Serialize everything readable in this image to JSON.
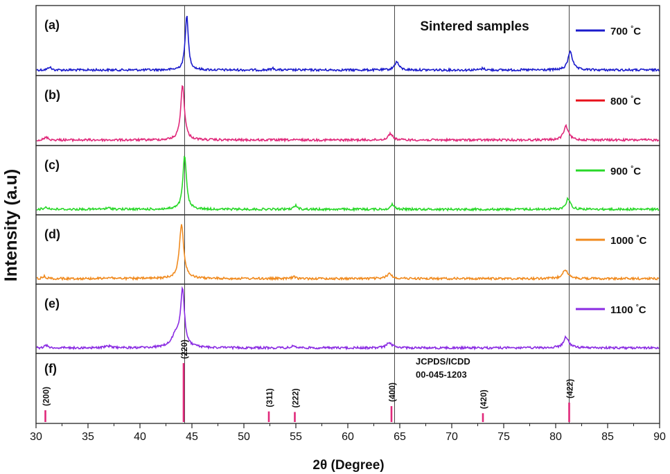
{
  "chart_data": {
    "type": "line",
    "title": "Sintered samples",
    "xlabel": "2θ (Degree)",
    "ylabel": "Intensity (a.u)",
    "xlim": [
      30,
      90
    ],
    "x_ticks": [
      30,
      35,
      40,
      45,
      50,
      55,
      60,
      65,
      70,
      75,
      80,
      85,
      90
    ],
    "reference_lines_x": [
      44.3,
      64.5,
      81.3
    ],
    "panels": [
      {
        "id": "a",
        "label": "(a)",
        "legend": "700 °C",
        "legend_temp": "700",
        "legend_unit": "°C",
        "color": "#1a1acc",
        "peaks": [
          {
            "x": 31.3,
            "height": 0.06,
            "width": 0.15
          },
          {
            "x": 44.5,
            "height": 1.0,
            "width": 0.18
          },
          {
            "x": 52.8,
            "height": 0.03,
            "width": 0.2
          },
          {
            "x": 64.7,
            "height": 0.15,
            "width": 0.25
          },
          {
            "x": 73.0,
            "height": 0.03,
            "width": 0.2
          },
          {
            "x": 81.4,
            "height": 0.35,
            "width": 0.25
          }
        ]
      },
      {
        "id": "b",
        "label": "(b)",
        "legend": "800 °C",
        "legend_temp": "800",
        "legend_unit": "°C",
        "color": "#e0287a",
        "legend_line_color": "#e8101a",
        "peaks": [
          {
            "x": 31.0,
            "height": 0.05,
            "width": 0.2
          },
          {
            "x": 44.1,
            "height": 1.0,
            "width": 0.22
          },
          {
            "x": 64.1,
            "height": 0.12,
            "width": 0.25
          },
          {
            "x": 81.0,
            "height": 0.25,
            "width": 0.28
          }
        ]
      },
      {
        "id": "c",
        "label": "(c)",
        "legend": "900 °C",
        "legend_temp": "900",
        "legend_unit": "°C",
        "color": "#28d828",
        "peaks": [
          {
            "x": 31.0,
            "height": 0.04,
            "width": 0.2
          },
          {
            "x": 37.0,
            "height": 0.02,
            "width": 0.4
          },
          {
            "x": 44.3,
            "height": 1.0,
            "width": 0.2
          },
          {
            "x": 55.0,
            "height": 0.07,
            "width": 0.2
          },
          {
            "x": 64.3,
            "height": 0.09,
            "width": 0.2
          },
          {
            "x": 81.2,
            "height": 0.2,
            "width": 0.25
          }
        ]
      },
      {
        "id": "d",
        "label": "(d)",
        "legend": "1000 °C",
        "legend_temp": "1000",
        "legend_unit": "°C",
        "color": "#f08a1e",
        "peaks": [
          {
            "x": 30.8,
            "height": 0.04,
            "width": 0.2
          },
          {
            "x": 37.0,
            "height": 0.02,
            "width": 0.4
          },
          {
            "x": 44.0,
            "height": 1.0,
            "width": 0.25
          },
          {
            "x": 54.8,
            "height": 0.03,
            "width": 0.2
          },
          {
            "x": 64.0,
            "height": 0.09,
            "width": 0.3
          },
          {
            "x": 80.9,
            "height": 0.17,
            "width": 0.3
          }
        ]
      },
      {
        "id": "e",
        "label": "(e)",
        "legend": "1100 °C",
        "legend_temp": "1100",
        "legend_unit": "°C",
        "color": "#8a2be2",
        "peaks": [
          {
            "x": 31.0,
            "height": 0.05,
            "width": 0.2
          },
          {
            "x": 37.0,
            "height": 0.03,
            "width": 0.4
          },
          {
            "x": 43.5,
            "height": 0.25,
            "width": 0.5
          },
          {
            "x": 44.1,
            "height": 1.0,
            "width": 0.22
          },
          {
            "x": 54.8,
            "height": 0.04,
            "width": 0.2
          },
          {
            "x": 64.0,
            "height": 0.1,
            "width": 0.3
          },
          {
            "x": 81.0,
            "height": 0.2,
            "width": 0.3
          }
        ]
      }
    ],
    "reference_pattern": {
      "label": "(f)",
      "title_line1": "JCPDS/ICDD",
      "title_line2": "00-045-1203",
      "color": "#e0287a",
      "peaks": [
        {
          "x": 30.9,
          "intensity": 0.2,
          "hkl": "(200)"
        },
        {
          "x": 44.2,
          "intensity": 1.0,
          "hkl": "(220)"
        },
        {
          "x": 52.4,
          "intensity": 0.18,
          "hkl": "(311)"
        },
        {
          "x": 54.9,
          "intensity": 0.17,
          "hkl": "(222)"
        },
        {
          "x": 64.2,
          "intensity": 0.27,
          "hkl": "(400)"
        },
        {
          "x": 73.0,
          "intensity": 0.15,
          "hkl": "(420)"
        },
        {
          "x": 81.3,
          "intensity": 0.33,
          "hkl": "(422)"
        }
      ]
    }
  }
}
